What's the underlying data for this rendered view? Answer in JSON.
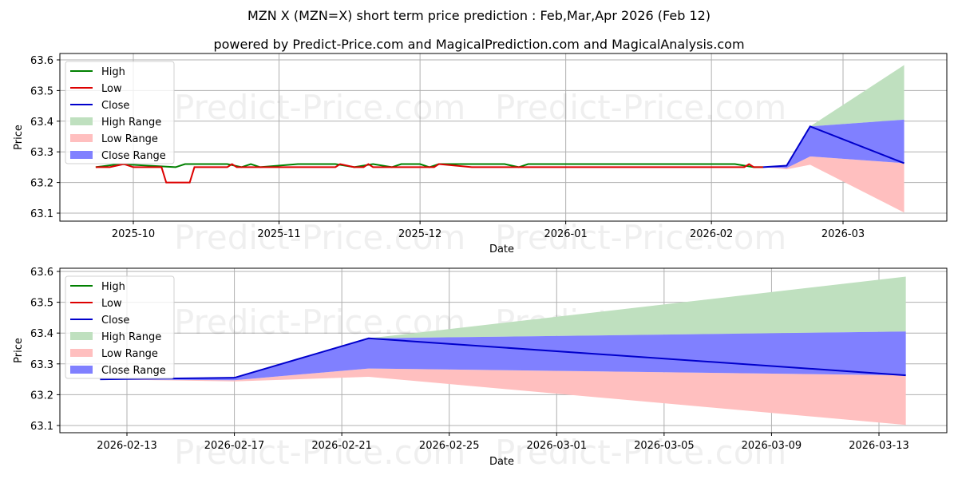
{
  "header": {
    "title": "MZN X (MZN=X) short term price prediction : Feb,Mar,Apr 2026 (Feb 12)",
    "subtitle": "powered by Predict-Price.com and MagicalPrediction.com and MagicalAnalysis.com"
  },
  "watermark": "Predict-Price.com",
  "colors": {
    "high": "#008000",
    "low": "#dd0000",
    "close": "#0000cc",
    "high_range": "#a8d5a8",
    "low_range": "#ffb0b0",
    "close_range": "#7a7aff"
  },
  "legend": [
    {
      "label": "High",
      "type": "line",
      "color": "#008000"
    },
    {
      "label": "Low",
      "type": "line",
      "color": "#dd0000"
    },
    {
      "label": "Close",
      "type": "line",
      "color": "#0000cc"
    },
    {
      "label": "High Range",
      "type": "patch",
      "color": "#bfe0bf"
    },
    {
      "label": "Low Range",
      "type": "patch",
      "color": "#ffbfbf"
    },
    {
      "label": "Close Range",
      "type": "patch",
      "color": "#8080ff"
    }
  ],
  "chart_data": [
    {
      "type": "line",
      "title": "MZN X (MZN=X) short term price prediction : Feb,Mar,Apr 2026 (Feb 12)",
      "xlabel": "Date",
      "ylabel": "Price",
      "ylim": [
        63.08,
        63.61
      ],
      "yticks": [
        63.1,
        63.2,
        63.3,
        63.4,
        63.5,
        63.6
      ],
      "xticks": [
        "2025-10",
        "2025-11",
        "2025-12",
        "2026-01",
        "2026-02",
        "2026-03"
      ],
      "grid": true,
      "legend_position": "upper left",
      "series": [
        {
          "name": "High",
          "x": [
            "2025-09-23",
            "2025-09-28",
            "2025-10-10",
            "2025-10-12",
            "2025-10-17",
            "2025-10-21",
            "2025-10-24",
            "2025-10-26",
            "2025-10-28",
            "2025-11-05",
            "2025-11-13",
            "2025-11-17",
            "2025-11-21",
            "2025-11-25",
            "2025-11-27",
            "2025-12-01",
            "2025-12-03",
            "2025-12-05",
            "2025-12-19",
            "2025-12-22",
            "2025-12-24",
            "2026-02-06",
            "2026-02-10",
            "2026-02-12"
          ],
          "values": [
            63.25,
            63.26,
            63.25,
            63.26,
            63.26,
            63.26,
            63.25,
            63.26,
            63.25,
            63.26,
            63.26,
            63.25,
            63.26,
            63.25,
            63.26,
            63.26,
            63.25,
            63.26,
            63.26,
            63.25,
            63.26,
            63.26,
            63.25,
            63.25
          ]
        },
        {
          "name": "Low",
          "x": [
            "2025-09-23",
            "2025-09-26",
            "2025-09-29",
            "2025-10-01",
            "2025-10-07",
            "2025-10-08",
            "2025-10-13",
            "2025-10-14",
            "2025-10-21",
            "2025-10-22",
            "2025-10-23",
            "2025-11-13",
            "2025-11-14",
            "2025-11-17",
            "2025-11-19",
            "2025-11-20",
            "2025-11-21",
            "2025-12-04",
            "2025-12-05",
            "2025-12-12",
            "2025-12-13",
            "2026-02-08",
            "2026-02-09",
            "2026-02-10",
            "2026-02-12"
          ],
          "values": [
            63.25,
            63.25,
            63.26,
            63.25,
            63.25,
            63.2,
            63.2,
            63.25,
            63.25,
            63.26,
            63.25,
            63.25,
            63.26,
            63.25,
            63.25,
            63.26,
            63.25,
            63.25,
            63.26,
            63.25,
            63.25,
            63.25,
            63.26,
            63.25,
            63.25
          ]
        },
        {
          "name": "Close",
          "x": [
            "2026-02-12",
            "2026-02-17",
            "2026-02-22",
            "2026-03-14"
          ],
          "values": [
            63.25,
            63.255,
            63.383,
            63.263
          ]
        },
        {
          "name": "High Range",
          "x": [
            "2026-02-12",
            "2026-02-17",
            "2026-02-22",
            "2026-03-14"
          ],
          "upper": [
            63.25,
            63.255,
            63.383,
            63.583
          ],
          "lower": [
            63.25,
            63.255,
            63.383,
            63.405
          ]
        },
        {
          "name": "Close Range",
          "x": [
            "2026-02-12",
            "2026-02-17",
            "2026-02-22",
            "2026-03-14"
          ],
          "upper": [
            63.25,
            63.255,
            63.383,
            63.405
          ],
          "lower": [
            63.25,
            63.247,
            63.285,
            63.263
          ]
        },
        {
          "name": "Low Range",
          "x": [
            "2026-02-12",
            "2026-02-17",
            "2026-02-22",
            "2026-03-14"
          ],
          "upper": [
            63.25,
            63.247,
            63.285,
            63.263
          ],
          "lower": [
            63.25,
            63.243,
            63.258,
            63.102
          ]
        }
      ]
    },
    {
      "type": "line",
      "title": "",
      "xlabel": "Date",
      "ylabel": "Price",
      "ylim": [
        63.08,
        63.61
      ],
      "yticks": [
        63.1,
        63.2,
        63.3,
        63.4,
        63.5,
        63.6
      ],
      "xticks": [
        "2026-02-13",
        "2026-02-17",
        "2026-02-21",
        "2026-02-25",
        "2026-03-01",
        "2026-03-05",
        "2026-03-09",
        "2026-03-13"
      ],
      "grid": true,
      "legend_position": "upper left",
      "series": [
        {
          "name": "Close",
          "x": [
            "2026-02-12",
            "2026-02-17",
            "2026-02-22",
            "2026-03-14"
          ],
          "values": [
            63.25,
            63.255,
            63.383,
            63.263
          ]
        },
        {
          "name": "High Range",
          "x": [
            "2026-02-12",
            "2026-02-17",
            "2026-02-22",
            "2026-03-14"
          ],
          "upper": [
            63.25,
            63.255,
            63.383,
            63.583
          ],
          "lower": [
            63.25,
            63.255,
            63.383,
            63.405
          ]
        },
        {
          "name": "Close Range",
          "x": [
            "2026-02-12",
            "2026-02-17",
            "2026-02-22",
            "2026-03-14"
          ],
          "upper": [
            63.25,
            63.255,
            63.383,
            63.405
          ],
          "lower": [
            63.25,
            63.247,
            63.285,
            63.263
          ]
        },
        {
          "name": "Low Range",
          "x": [
            "2026-02-12",
            "2026-02-17",
            "2026-02-22",
            "2026-03-14"
          ],
          "upper": [
            63.25,
            63.247,
            63.285,
            63.263
          ],
          "lower": [
            63.25,
            63.243,
            63.258,
            63.102
          ]
        }
      ]
    }
  ]
}
